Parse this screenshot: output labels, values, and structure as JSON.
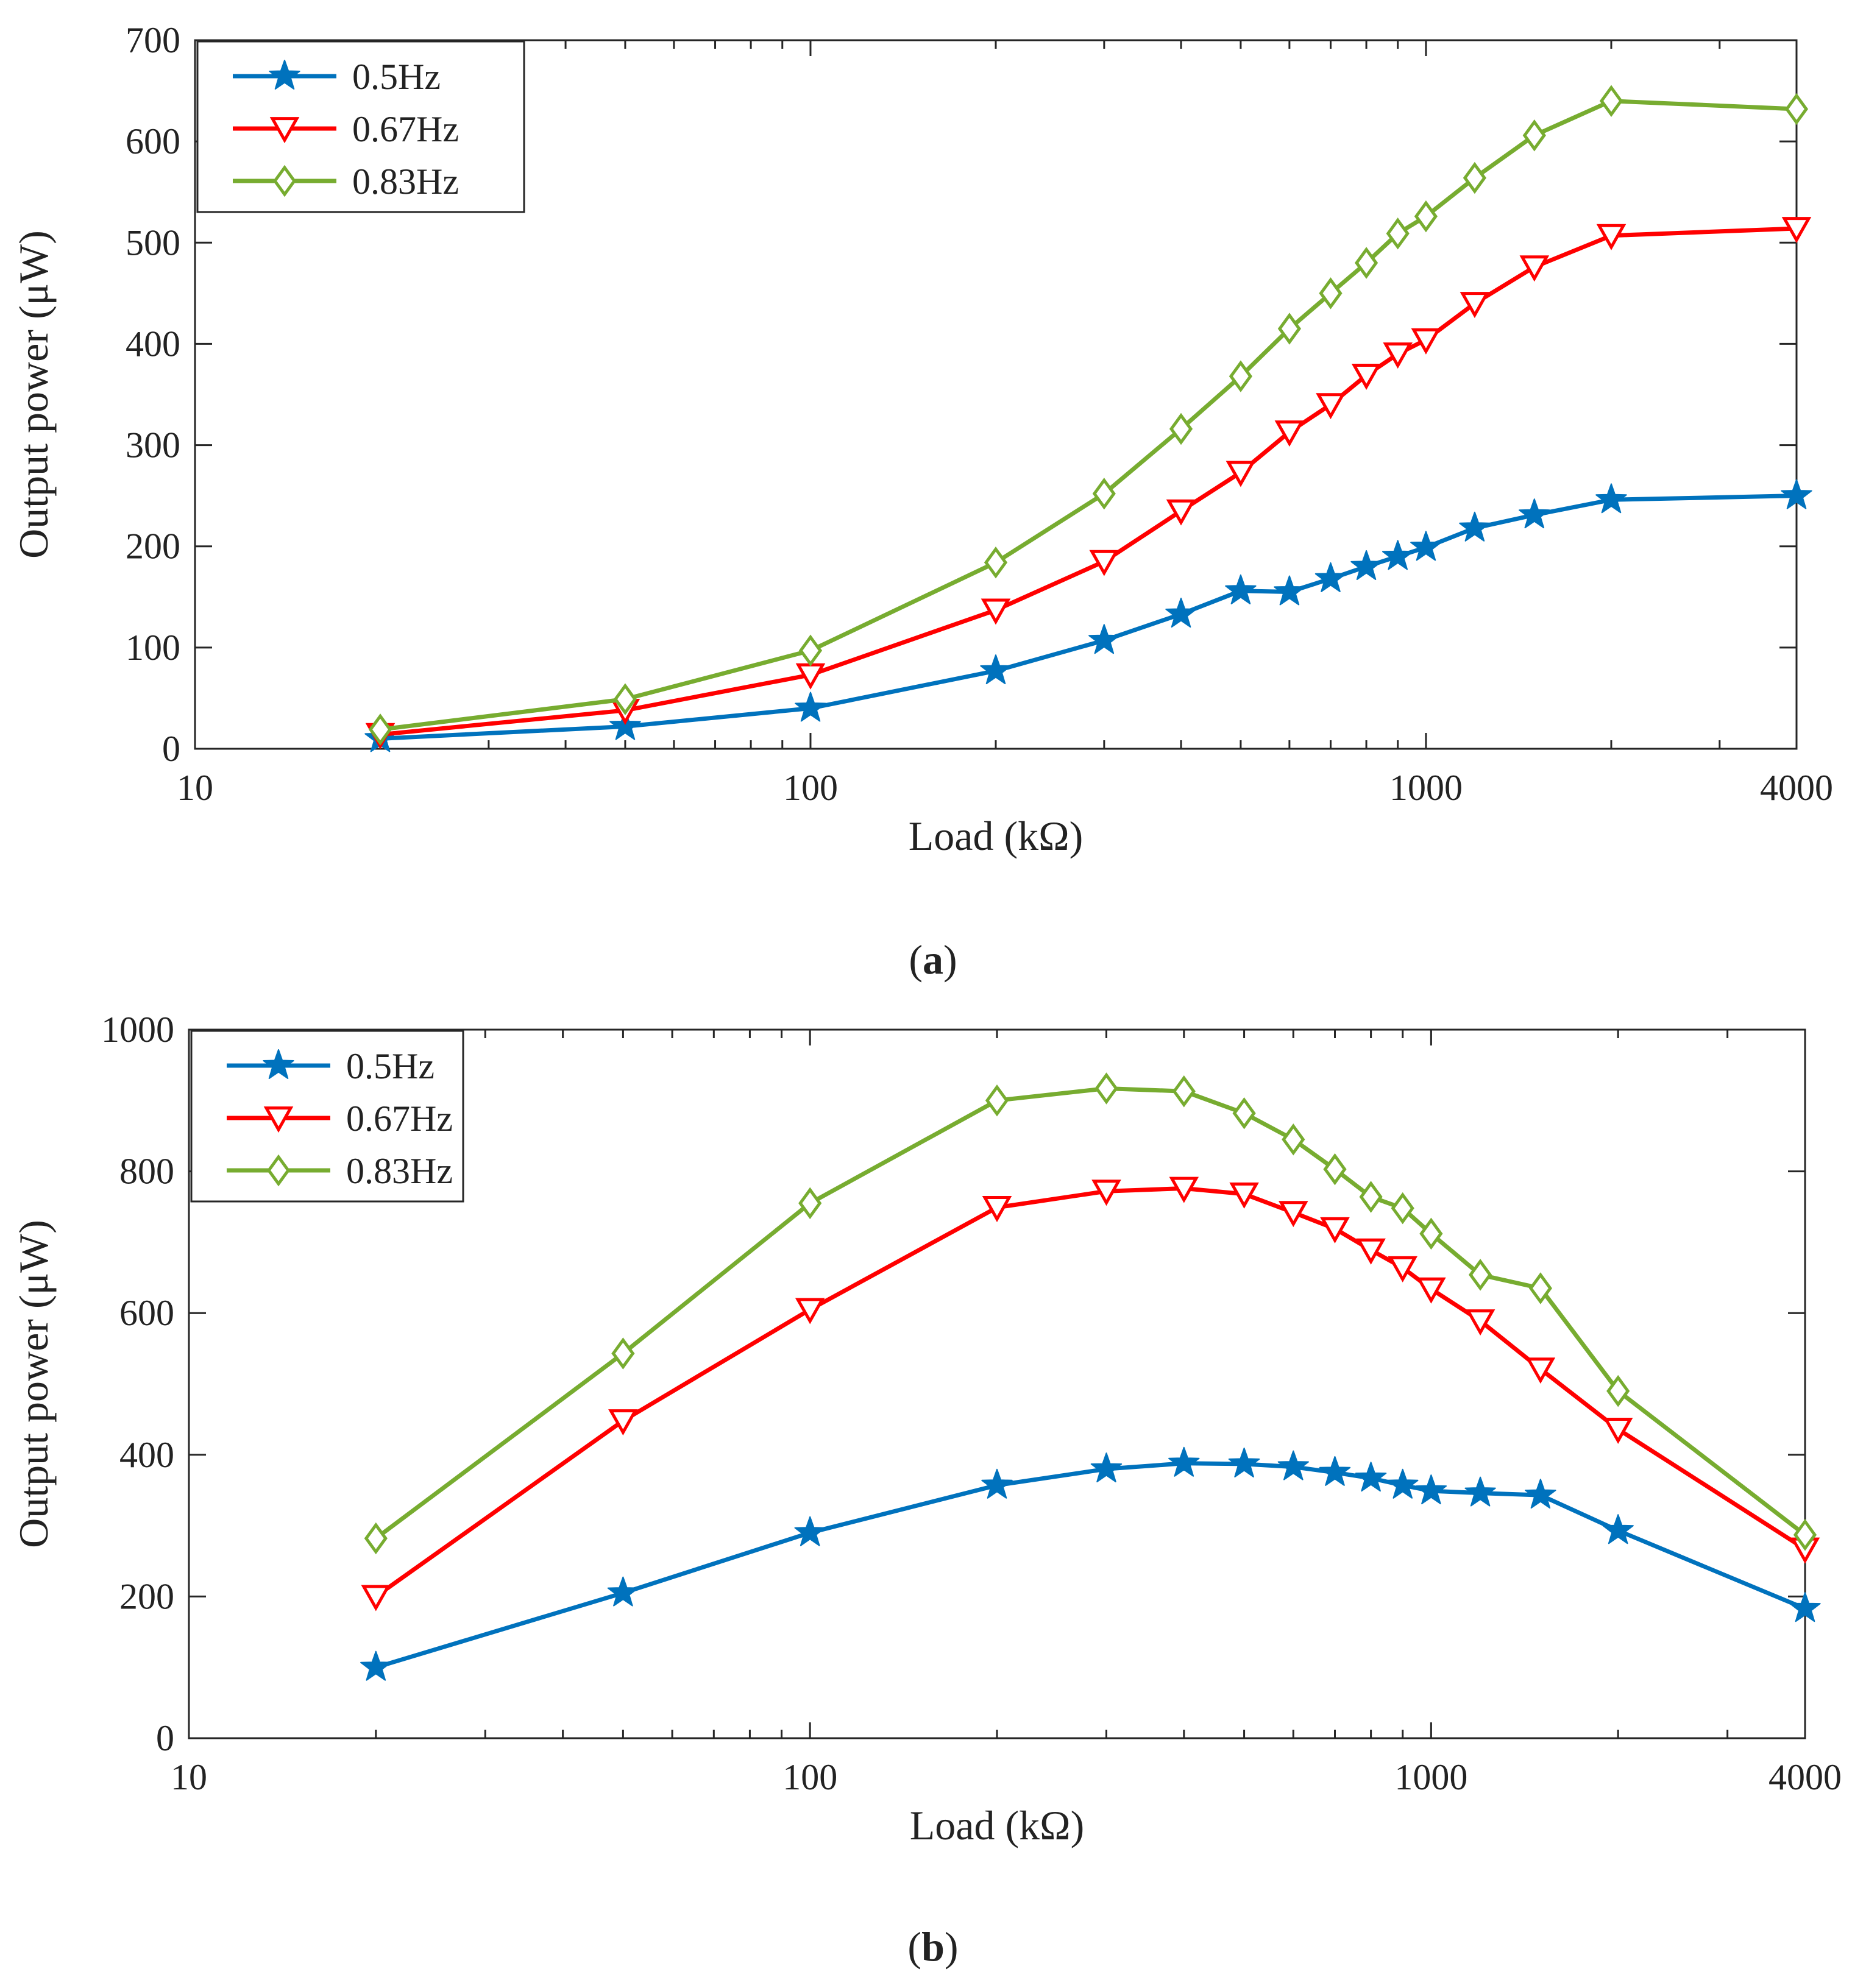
{
  "colors": {
    "blue": "#0072BD",
    "red": "#FF0000",
    "green": "#77AC30",
    "axis": "#262626"
  },
  "chart_data": [
    {
      "type": "line",
      "caption_label": "a",
      "xlabel": "Load (kΩ)",
      "ylabel": "Output power (μW)",
      "xscale": "log",
      "xlim": [
        10,
        4000
      ],
      "ylim": [
        0,
        700
      ],
      "xticks": [
        10,
        100,
        1000,
        4000
      ],
      "xtick_labels": [
        "10",
        "100",
        "1000",
        "4000"
      ],
      "yticks": [
        0,
        100,
        200,
        300,
        400,
        500,
        600,
        700
      ],
      "ytick_labels": [
        "0",
        "100",
        "200",
        "300",
        "400",
        "500",
        "600",
        "700"
      ],
      "legend_position": "top-left",
      "x": [
        20,
        50,
        100,
        200,
        300,
        400,
        500,
        600,
        700,
        800,
        900,
        1000,
        1200,
        1500,
        2000,
        4000
      ],
      "series": [
        {
          "name": "0.5Hz",
          "color": "#0072BD",
          "marker": "star",
          "values": [
            10,
            22,
            40,
            77,
            107,
            133,
            156,
            155,
            168,
            180,
            190,
            199,
            218,
            231,
            246,
            250
          ]
        },
        {
          "name": "0.67Hz",
          "color": "#FF0000",
          "marker": "triangle-down",
          "values": [
            14,
            38,
            73,
            137,
            185,
            235,
            273,
            313,
            340,
            369,
            390,
            404,
            440,
            476,
            507,
            514
          ]
        },
        {
          "name": "0.83Hz",
          "color": "#77AC30",
          "marker": "diamond",
          "values": [
            19,
            49,
            97,
            184,
            252,
            316,
            368,
            415,
            450,
            480,
            509,
            526,
            564,
            606,
            640,
            632
          ]
        }
      ]
    },
    {
      "type": "line",
      "caption_label": "b",
      "xlabel": "Load (kΩ)",
      "ylabel": "Output power (μW)",
      "xscale": "log",
      "xlim": [
        10,
        4000
      ],
      "ylim": [
        0,
        1000
      ],
      "xticks": [
        10,
        100,
        1000,
        4000
      ],
      "xtick_labels": [
        "10",
        "100",
        "1000",
        "4000"
      ],
      "yticks": [
        0,
        200,
        400,
        600,
        800,
        1000
      ],
      "ytick_labels": [
        "0",
        "200",
        "400",
        "600",
        "800",
        "1000"
      ],
      "legend_position": "top-left",
      "x": [
        20,
        50,
        100,
        200,
        300,
        400,
        500,
        600,
        700,
        800,
        900,
        1000,
        1200,
        1500,
        2000,
        4000
      ],
      "series": [
        {
          "name": "0.5Hz",
          "color": "#0072BD",
          "marker": "star",
          "values": [
            100,
            205,
            290,
            357,
            380,
            388,
            387,
            383,
            375,
            367,
            357,
            349,
            346,
            343,
            293,
            183
          ]
        },
        {
          "name": "0.67Hz",
          "color": "#FF0000",
          "marker": "triangle-down",
          "values": [
            200,
            448,
            605,
            749,
            772,
            776,
            768,
            742,
            719,
            689,
            664,
            634,
            589,
            521,
            436,
            267
          ]
        },
        {
          "name": "0.83Hz",
          "color": "#77AC30",
          "marker": "diamond",
          "values": [
            282,
            543,
            755,
            900,
            917,
            913,
            882,
            845,
            803,
            764,
            748,
            712,
            654,
            635,
            490,
            287
          ]
        }
      ]
    }
  ]
}
